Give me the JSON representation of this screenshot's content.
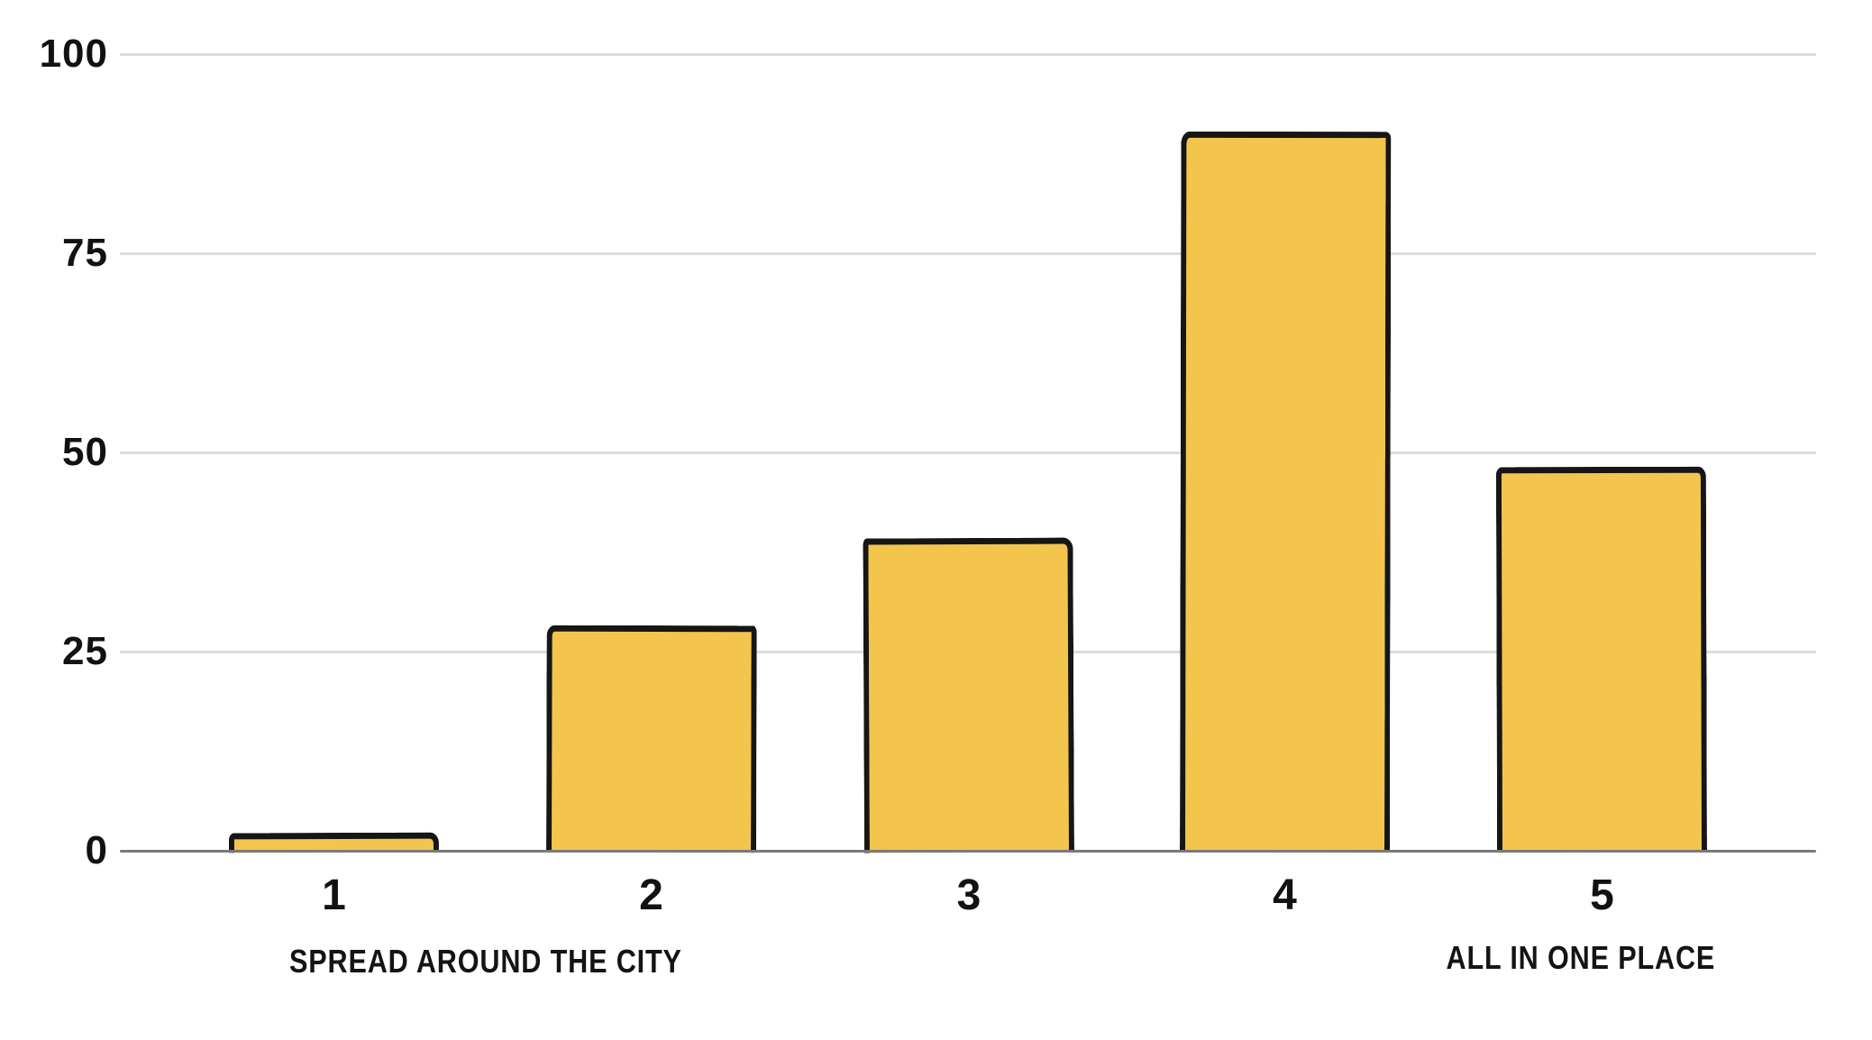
{
  "chart_data": {
    "type": "bar",
    "title": "",
    "xlabel": "",
    "ylabel": "",
    "categories": [
      "1",
      "2",
      "3",
      "4",
      "5"
    ],
    "values": [
      2,
      28,
      39,
      90,
      48
    ],
    "ylim": [
      0,
      100
    ],
    "yticks": [
      0,
      25,
      50,
      75,
      100
    ],
    "grid": true,
    "legend": false,
    "style": "hand-drawn-sketch",
    "annotations": {
      "left": "SPREAD AROUND THE CITY",
      "right": "ALL IN ONE PLACE"
    },
    "colors": {
      "bar_fill": "#F3C54D",
      "bar_outline": "#161616",
      "gridline": "#DCDCDC",
      "axis_line": "#7A7A7A",
      "text": "#121212",
      "background": "#FFFFFF"
    }
  }
}
